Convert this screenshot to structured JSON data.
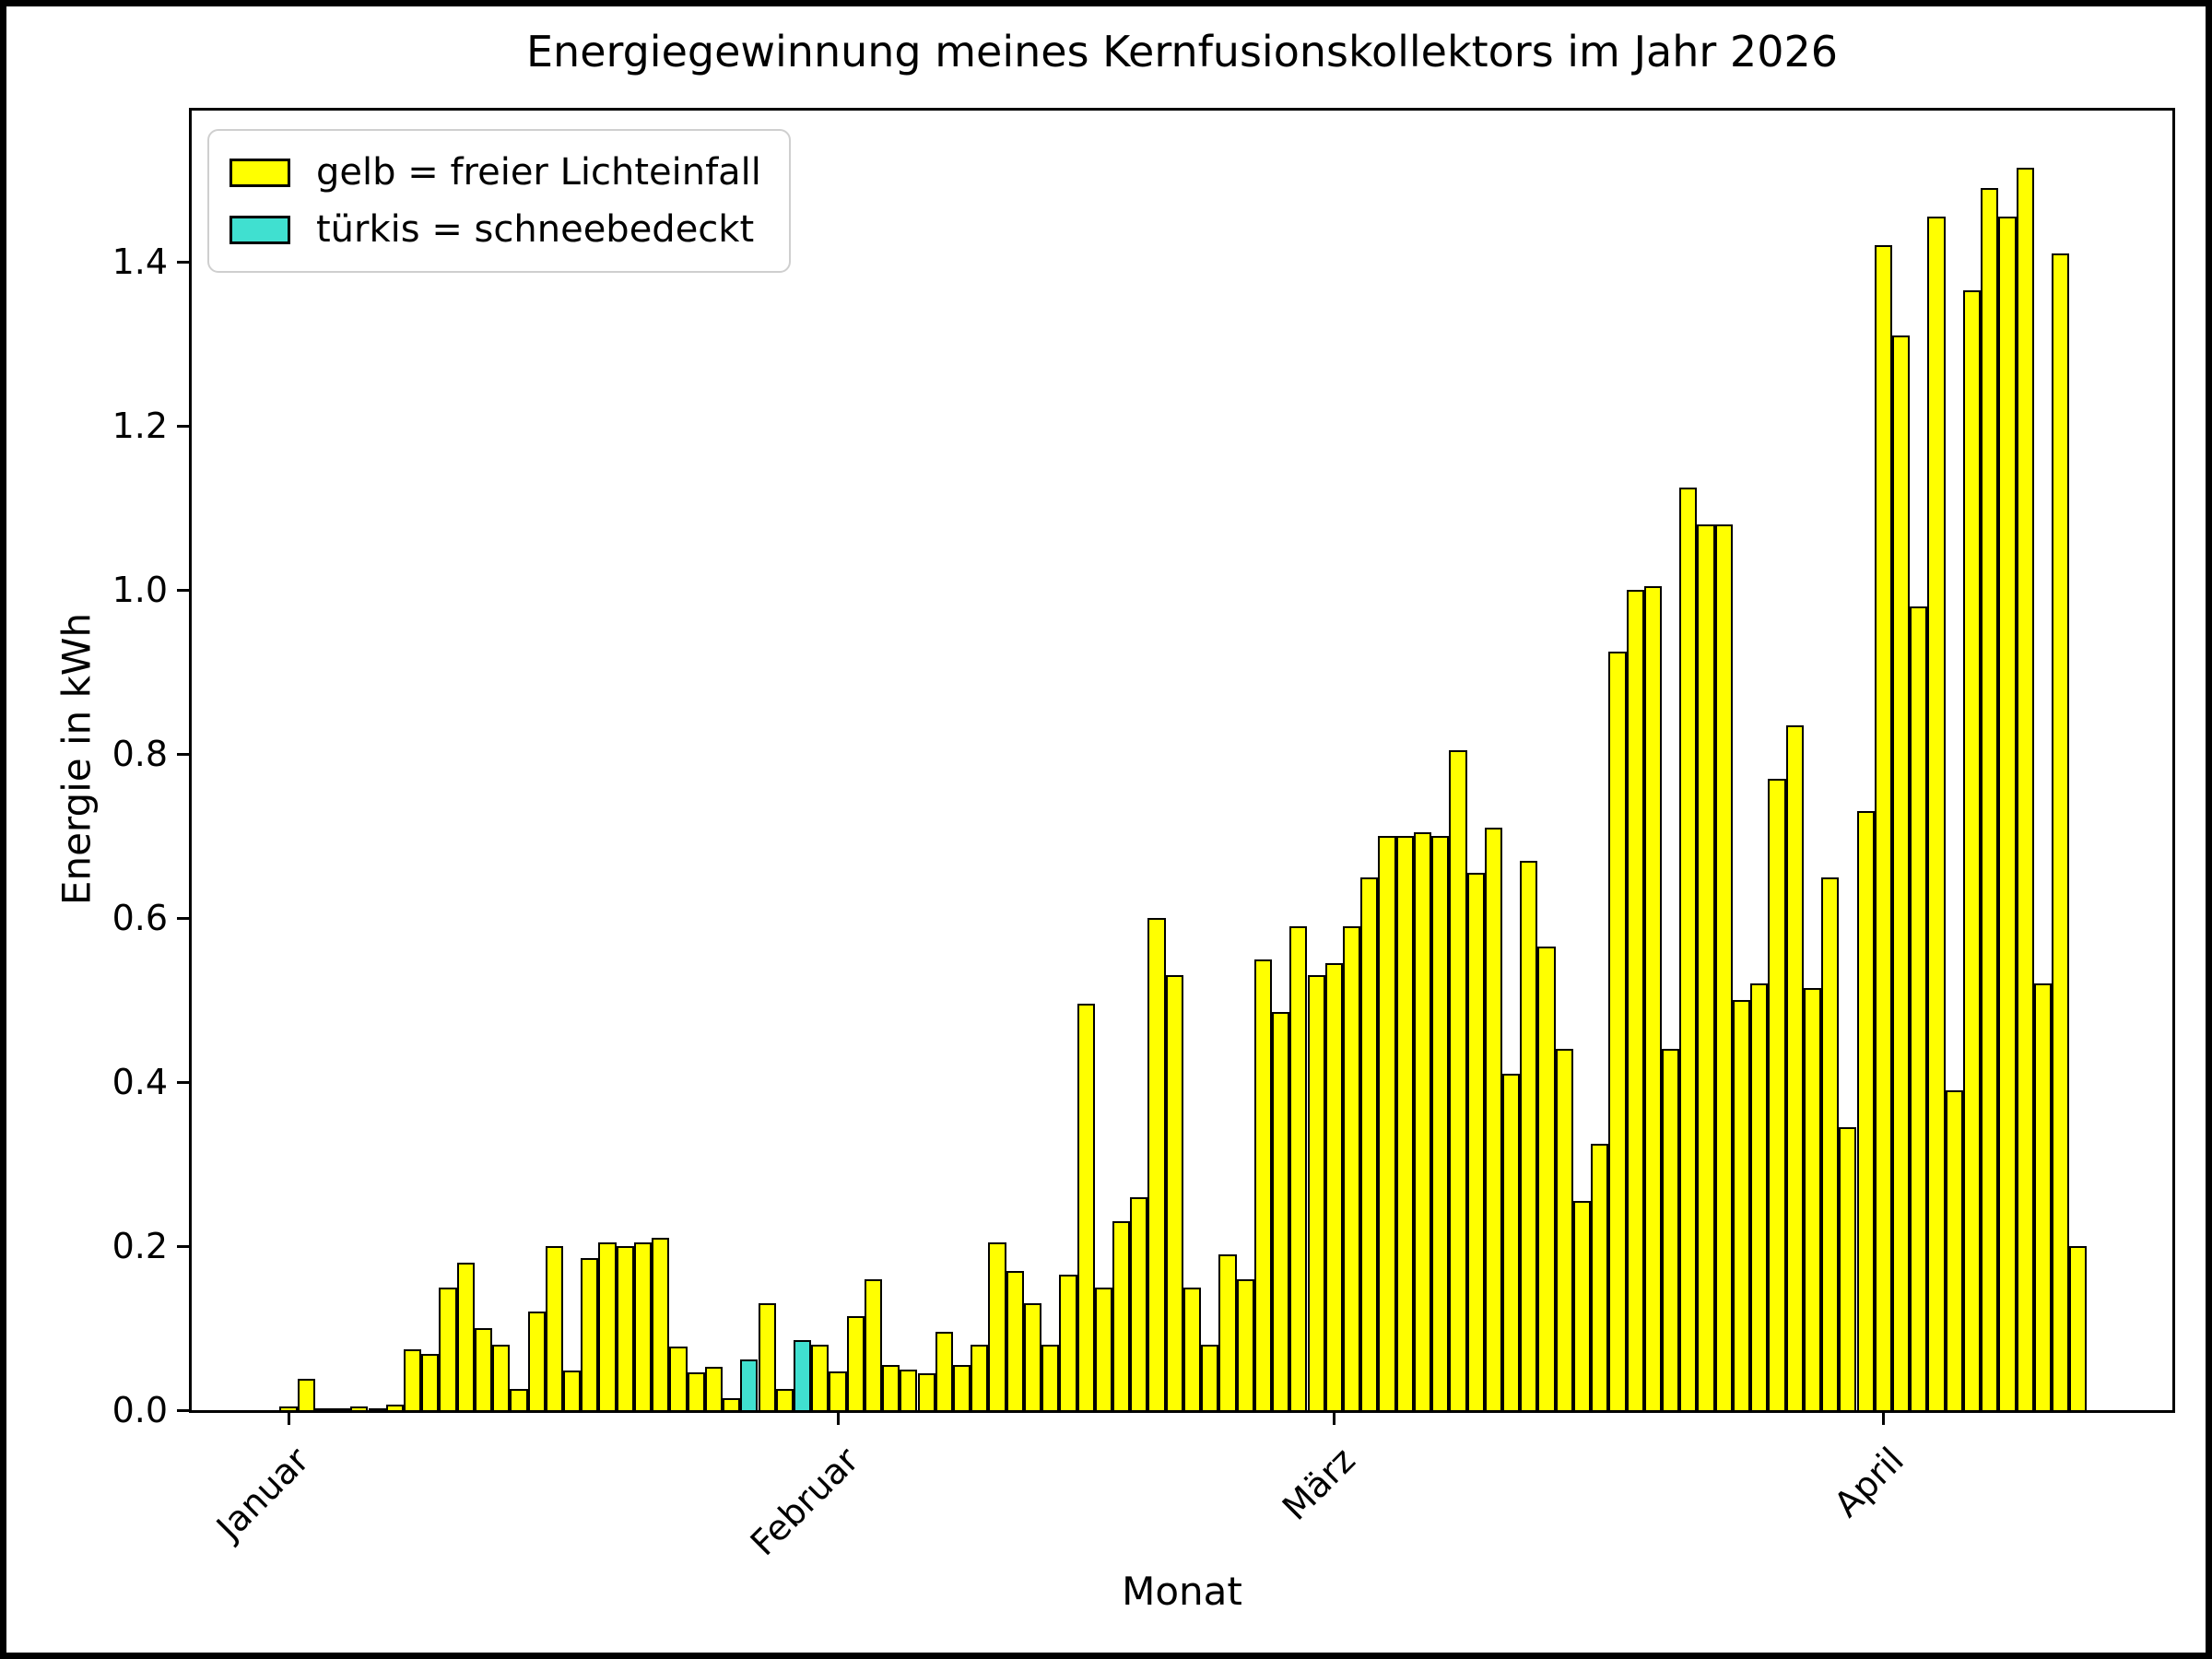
{
  "figure": {
    "title": "Energiegewinnung meines Kernfusionskollektors im Jahr 2026",
    "xlabel": "Monat",
    "ylabel": "Energie in kWh",
    "legend": [
      {
        "label": "gelb = freier Lichteinfall",
        "color": "#ffff00"
      },
      {
        "label": "türkis = schneebedeckt",
        "color": "#40e0d0"
      }
    ]
  },
  "chart_data": {
    "type": "bar",
    "title": "Energiegewinnung meines Kernfusionskollektors im Jahr 2026",
    "xlabel": "Monat",
    "ylabel": "Energie in kWh",
    "ylim": [
      0,
      1.588
    ],
    "grid": false,
    "legend_position": "upper left",
    "bar_color_default": "#ffff00",
    "bar_color_snow": "#40e0d0",
    "bar_edge_color": "#000000",
    "yticks": [
      0.0,
      0.2,
      0.4,
      0.6,
      0.8,
      1.0,
      1.2,
      1.4
    ],
    "xtick_labels": [
      "Januar",
      "Februar",
      "März",
      "April"
    ],
    "xtick_day_indices": [
      0,
      31,
      59,
      90
    ],
    "series": [
      {
        "name": "Januar",
        "values": [
          0.004,
          0.038,
          0.002,
          0.001,
          0.004,
          0.002,
          0.007,
          0.074,
          0.068,
          0.15,
          0.18,
          0.1,
          0.08,
          0.026,
          0.12,
          0.2,
          0.048,
          0.185,
          0.205,
          0.2,
          0.205,
          0.21,
          0.078,
          0.046,
          0.053,
          0.015,
          0.062,
          0.13,
          0.026,
          0.085,
          0.08
        ]
      },
      {
        "name": "Februar",
        "values": [
          0.047,
          0.115,
          0.16,
          0.055,
          0.05,
          0.045,
          0.095,
          0.055,
          0.08,
          0.205,
          0.17,
          0.13,
          0.08,
          0.165,
          0.495,
          0.15,
          0.23,
          0.26,
          0.6,
          0.53,
          0.15,
          0.08,
          0.19,
          0.16,
          0.55,
          0.485,
          0.59,
          0.53
        ]
      },
      {
        "name": "März",
        "values": [
          0.545,
          0.59,
          0.65,
          0.7,
          0.7,
          0.705,
          0.7,
          0.805,
          0.655,
          0.71,
          0.41,
          0.67,
          0.565,
          0.44,
          0.255,
          0.325,
          0.925,
          1.0,
          1.005,
          0.44,
          1.125,
          1.08,
          1.08,
          0.5,
          0.52,
          0.77,
          0.835,
          0.515,
          0.65,
          0.345,
          0.73
        ]
      },
      {
        "name": "April",
        "values": [
          1.42,
          1.31,
          0.98,
          1.455,
          0.39,
          1.365,
          1.49,
          1.455,
          1.515,
          0.52,
          1.41,
          0.2
        ]
      }
    ],
    "snow_day_flat_indices": [
      26,
      29
    ],
    "snow_days": [
      {
        "month": "Januar",
        "day": 27
      },
      {
        "month": "Januar",
        "day": 30
      }
    ]
  }
}
